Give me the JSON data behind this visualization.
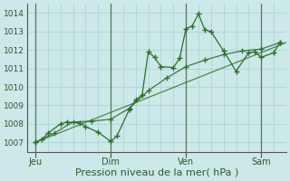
{
  "xlabel": "Pression niveau de la mer( hPa )",
  "bg_color": "#cce8e8",
  "grid_color": "#b0d8d8",
  "line_color": "#2d6e2d",
  "ylim": [
    1006.5,
    1014.5
  ],
  "yticks": [
    1007,
    1008,
    1009,
    1010,
    1011,
    1012,
    1013,
    1014
  ],
  "xtick_labels": [
    "Jeu",
    "Dim",
    "Ven",
    "Sam"
  ],
  "xtick_positions": [
    0,
    72,
    144,
    216
  ],
  "xlim": [
    -8,
    240
  ],
  "minor_xticks": [
    0,
    12,
    24,
    36,
    48,
    60,
    72,
    84,
    96,
    108,
    120,
    132,
    144,
    156,
    168,
    180,
    192,
    204,
    216,
    228,
    240
  ],
  "series1_x": [
    0,
    6,
    12,
    24,
    30,
    42,
    48,
    60,
    72,
    78,
    90,
    96,
    102,
    108,
    114,
    120,
    132,
    138,
    144,
    150,
    156,
    162,
    168,
    180,
    192,
    204,
    210,
    216,
    228,
    234
  ],
  "series1_y": [
    1007.0,
    1007.15,
    1007.5,
    1008.0,
    1008.1,
    1008.05,
    1007.85,
    1007.55,
    1007.05,
    1007.35,
    1008.8,
    1009.3,
    1009.55,
    1011.9,
    1011.6,
    1011.1,
    1011.05,
    1011.55,
    1013.15,
    1013.3,
    1013.95,
    1013.1,
    1013.0,
    1011.95,
    1010.85,
    1011.85,
    1011.9,
    1011.6,
    1011.85,
    1012.4
  ],
  "series2_x": [
    0,
    18,
    36,
    54,
    72,
    90,
    108,
    126,
    144,
    162,
    180,
    198,
    216,
    234
  ],
  "series2_y": [
    1007.0,
    1007.5,
    1008.1,
    1008.15,
    1008.25,
    1008.85,
    1009.8,
    1010.5,
    1011.1,
    1011.45,
    1011.75,
    1011.95,
    1012.05,
    1012.4
  ],
  "series3_x": [
    0,
    240
  ],
  "series3_y": [
    1007.0,
    1012.4
  ]
}
